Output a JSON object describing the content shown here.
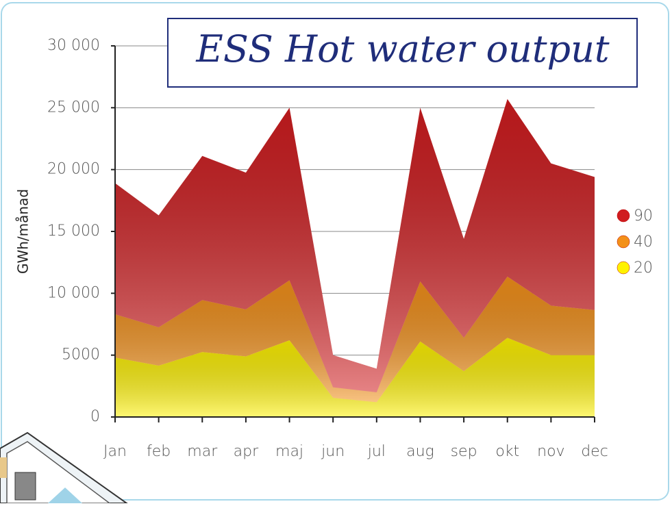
{
  "chart_data": {
    "type": "stacked_area",
    "title": "ESS Hot water output",
    "y_label": "GWh/månad",
    "categories": [
      "Jan",
      "feb",
      "mar",
      "apr",
      "maj",
      "jun",
      "jul",
      "aug",
      "sep",
      "okt",
      "nov",
      "dec"
    ],
    "series": [
      {
        "name": "20",
        "color": "#fff200",
        "values": [
          4800,
          4150,
          5250,
          4900,
          6200,
          1550,
          1200,
          6100,
          3700,
          6400,
          5000,
          5000
        ]
      },
      {
        "name": "40",
        "color": "#f39019",
        "values": [
          3500,
          3100,
          4200,
          3800,
          4850,
          850,
          800,
          4850,
          2700,
          4950,
          4000,
          3650
        ]
      },
      {
        "name": "90",
        "color": "#d01c1f",
        "values": [
          10600,
          9050,
          11650,
          11050,
          13950,
          2600,
          1900,
          14050,
          8000,
          14350,
          11500,
          10750
        ]
      }
    ],
    "ylim": [
      0,
      30000
    ],
    "yticks": [
      0,
      5000,
      {
        "value": 10000,
        "label": "10 000"
      },
      {
        "value": 15000,
        "label": "15 000"
      },
      {
        "value": 20000,
        "label": "20 000"
      },
      {
        "value": 25000,
        "label": "25 000"
      },
      {
        "value": 30000,
        "label": "30 000"
      }
    ],
    "grid": true,
    "legend": "right"
  }
}
